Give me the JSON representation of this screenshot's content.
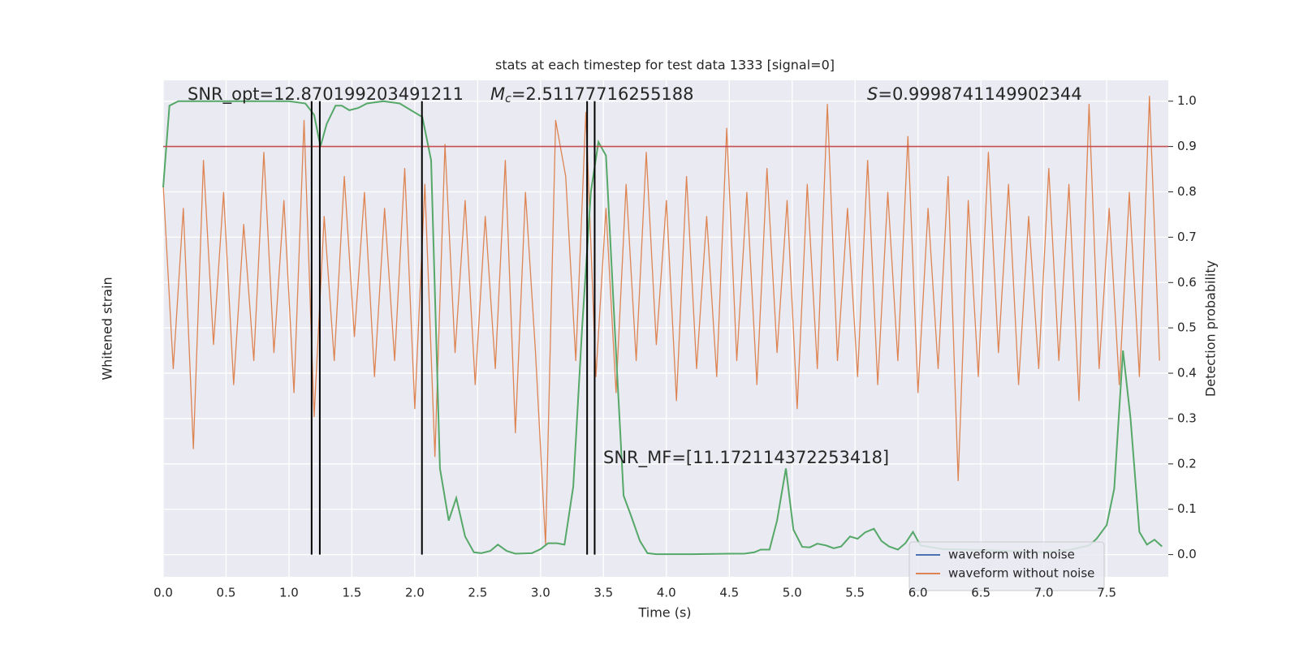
{
  "chart_data": {
    "type": "line",
    "title": "stats at each timestep for test data 1333 [signal=0]",
    "xlabel": "Time (s)",
    "ylabel": "Whitened strain",
    "y2label": "Detection probability",
    "annotations": {
      "snr_opt": "SNR_opt=12.870199203491211",
      "chirp_mass": {
        "symbol": "M",
        "subscript": "c",
        "text": "=2.51177716255188"
      },
      "score": {
        "symbol": "S",
        "text": "=0.9998741149902344"
      },
      "snr_mf": "SNR_MF=[11.172114372253418]"
    },
    "xlim": [
      0,
      7.99
    ],
    "xticks": [
      {
        "value": 0,
        "label": "0.0"
      },
      0.5,
      {
        "value": 1,
        "label": "1.0"
      },
      1.5,
      {
        "value": 2,
        "label": "2.0"
      },
      2.5,
      {
        "value": 3,
        "label": "3.0"
      },
      3.5,
      {
        "value": 4,
        "label": "4.0"
      },
      4.5,
      {
        "value": 5,
        "label": "5.0"
      },
      5.5,
      {
        "value": 6,
        "label": "6.0"
      },
      6.5,
      {
        "value": 7,
        "label": "7.0"
      },
      7.5
    ],
    "ylim": [
      -3.7,
      2.5
    ],
    "y2lim": [
      -0.049,
      1.046
    ],
    "y2ticks": [
      {
        "value": 0,
        "label": "0.0"
      },
      0.1,
      0.2,
      0.3,
      0.4,
      0.5,
      0.6,
      0.7,
      0.8,
      0.9,
      {
        "value": 1,
        "label": "1.0"
      }
    ],
    "grid": true,
    "legend": "lower right",
    "x": [
      0,
      0.08,
      0.16,
      0.24,
      0.32,
      0.4,
      0.48,
      0.56,
      0.64,
      0.72,
      0.8,
      0.88,
      0.96,
      1.04,
      1.12,
      1.2,
      1.28,
      1.36,
      1.44,
      1.52,
      1.6,
      1.68,
      1.76,
      1.84,
      1.92,
      2,
      2.08,
      2.16,
      2.24,
      2.32,
      2.4,
      2.48,
      2.56,
      2.64,
      2.72,
      2.8,
      2.88,
      2.96,
      3.04,
      3.12,
      3.2,
      3.28,
      3.36,
      3.44,
      3.52,
      3.6,
      3.68,
      3.76,
      3.84,
      3.92,
      4,
      4.08,
      4.16,
      4.24,
      4.32,
      4.4,
      4.48,
      4.56,
      4.64,
      4.72,
      4.8,
      4.88,
      4.96,
      5.04,
      5.12,
      5.2,
      5.28,
      5.36,
      5.44,
      5.52,
      5.6,
      5.68,
      5.76,
      5.84,
      5.92,
      6,
      6.08,
      6.16,
      6.24,
      6.32,
      6.4,
      6.48,
      6.56,
      6.64,
      6.72,
      6.8,
      6.88,
      6.96,
      7.04,
      7.12,
      7.2,
      7.28,
      7.36,
      7.44,
      7.52,
      7.6,
      7.68,
      7.76,
      7.84,
      7.92
    ],
    "series": [
      {
        "name": "waveform with noise",
        "color": "#4c72b0",
        "values": [
          null,
          null,
          null,
          null,
          null,
          null,
          null,
          null,
          null,
          null,
          null,
          null,
          null,
          null,
          null,
          null,
          null,
          null,
          null,
          null,
          null,
          null,
          null,
          null,
          null,
          null,
          null,
          null,
          null,
          null,
          null,
          null,
          null,
          null,
          null,
          null,
          null,
          null,
          null,
          null,
          null,
          null,
          null,
          null,
          null,
          null,
          null,
          null,
          null,
          null,
          null,
          null,
          null,
          null,
          null,
          null,
          null,
          null,
          null,
          null,
          null,
          null,
          null,
          null,
          null,
          null,
          null,
          null,
          null,
          null,
          null,
          null,
          null,
          null,
          null,
          null,
          null,
          null,
          null,
          null,
          null,
          null,
          null,
          null,
          null,
          null,
          null,
          null,
          null,
          null,
          null,
          null,
          null,
          null,
          null,
          null,
          null,
          null,
          null,
          null
        ]
      },
      {
        "name": "waveform without noise",
        "color": "#dd8452",
        "values": [
          1.2,
          -1.1,
          0.9,
          -2.1,
          1.5,
          -0.8,
          1.1,
          -1.3,
          0.7,
          -1.0,
          1.6,
          -0.9,
          1.0,
          -1.4,
          2.0,
          -1.7,
          0.8,
          -1.0,
          1.3,
          -0.7,
          1.1,
          -1.2,
          0.9,
          -1.0,
          1.4,
          -1.6,
          1.2,
          -2.2,
          1.7,
          -0.9,
          1.0,
          -1.3,
          0.8,
          -1.1,
          1.5,
          -1.9,
          1.1,
          -0.9,
          -3.3,
          2.0,
          1.3,
          -1.0,
          2.1,
          -1.2,
          0.9,
          -1.4,
          1.2,
          -1.0,
          1.6,
          -0.8,
          1.0,
          -1.5,
          1.3,
          -1.1,
          0.8,
          -1.2,
          1.9,
          -1.0,
          1.1,
          -1.3,
          1.4,
          -0.9,
          1.0,
          -1.6,
          1.2,
          -1.1,
          2.2,
          -1.0,
          0.9,
          -1.2,
          1.5,
          -1.3,
          1.1,
          -1.0,
          1.8,
          -1.4,
          0.9,
          -1.1,
          1.3,
          -2.5,
          1.0,
          -1.2,
          1.6,
          -0.9,
          1.2,
          -1.3,
          0.8,
          -1.1,
          1.4,
          -1.0,
          1.2,
          -1.5,
          2.2,
          -1.1,
          0.9,
          -1.3,
          1.1,
          -1.2,
          2.3,
          -1.0
        ]
      }
    ],
    "probability": {
      "color": "#55a868",
      "axis": "y2",
      "x": [
        0,
        0.05,
        0.12,
        0.5,
        1,
        1.13,
        1.2,
        1.25,
        1.3,
        1.37,
        1.42,
        1.48,
        1.55,
        1.62,
        1.75,
        1.88,
        2,
        2.06,
        2.13,
        2.2,
        2.27,
        2.33,
        2.4,
        2.47,
        2.53,
        2.6,
        2.66,
        2.73,
        2.8,
        2.93,
        3,
        3.06,
        3.13,
        3.19,
        3.26,
        3.33,
        3.4,
        3.46,
        3.52,
        3.59,
        3.66,
        3.72,
        3.79,
        3.85,
        3.92,
        4.2,
        4.5,
        4.62,
        4.7,
        4.75,
        4.82,
        4.88,
        4.95,
        5.01,
        5.08,
        5.14,
        5.2,
        5.27,
        5.33,
        5.39,
        5.46,
        5.52,
        5.58,
        5.65,
        5.71,
        5.77,
        5.84,
        5.9,
        5.96,
        6.02,
        6.2,
        6.5,
        7,
        7.2,
        7.36,
        7.42,
        7.5,
        7.56,
        7.63,
        7.69,
        7.76,
        7.82,
        7.88,
        7.94
      ],
      "values": [
        0.81,
        0.99,
        1,
        1,
        1,
        0.995,
        0.97,
        0.9,
        0.95,
        0.99,
        0.99,
        0.98,
        0.985,
        0.995,
        1,
        0.995,
        0.975,
        0.965,
        0.87,
        0.19,
        0.075,
        0.125,
        0.04,
        0.005,
        0.003,
        0.008,
        0.022,
        0.008,
        0.002,
        0.003,
        0.012,
        0.025,
        0.025,
        0.022,
        0.15,
        0.5,
        0.8,
        0.91,
        0.88,
        0.5,
        0.13,
        0.085,
        0.03,
        0.003,
        0.001,
        0.001,
        0.002,
        0.002,
        0.005,
        0.011,
        0.011,
        0.075,
        0.19,
        0.055,
        0.017,
        0.016,
        0.024,
        0.02,
        0.014,
        0.018,
        0.04,
        0.035,
        0.049,
        0.057,
        0.03,
        0.018,
        0.011,
        0.025,
        0.05,
        0.02,
        0.012,
        0.01,
        0.005,
        0.01,
        0.02,
        0.035,
        0.065,
        0.145,
        0.45,
        0.3,
        0.05,
        0.022,
        0.033,
        0.018
      ]
    },
    "hline": {
      "y": 0.9,
      "color": "#c44e52"
    },
    "vlines": {
      "x": [
        1.18,
        1.245,
        2.057,
        3.37,
        3.43
      ],
      "ymin": 0,
      "ymax": 1,
      "color": "#000000"
    }
  }
}
